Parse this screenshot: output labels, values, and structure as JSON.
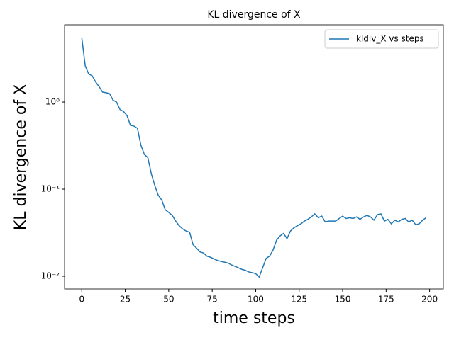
{
  "chart_data": {
    "type": "line",
    "title": "KL divergence of X",
    "xlabel": "time steps",
    "ylabel": "KL divergence of X",
    "x": [
      0,
      2,
      4,
      6,
      8,
      10,
      12,
      14,
      16,
      18,
      20,
      22,
      24,
      26,
      28,
      30,
      32,
      34,
      36,
      38,
      40,
      42,
      44,
      46,
      48,
      50,
      52,
      54,
      56,
      58,
      60,
      62,
      64,
      66,
      68,
      70,
      72,
      74,
      76,
      78,
      80,
      82,
      84,
      86,
      88,
      90,
      92,
      94,
      96,
      98,
      100,
      102,
      104,
      106,
      108,
      110,
      112,
      114,
      116,
      118,
      120,
      122,
      124,
      126,
      128,
      130,
      132,
      134,
      136,
      138,
      140,
      142,
      144,
      146,
      148,
      150,
      152,
      154,
      156,
      158,
      160,
      162,
      164,
      166,
      168,
      170,
      172,
      174,
      176,
      178,
      180,
      182,
      184,
      186,
      188,
      190,
      192,
      194,
      196,
      198
    ],
    "series": [
      {
        "name": "kldiv_X vs steps",
        "color": "#1f77b4",
        "values": [
          5.5,
          2.6,
          2.1,
          2.0,
          1.7,
          1.5,
          1.3,
          1.28,
          1.25,
          1.05,
          1.0,
          0.82,
          0.78,
          0.7,
          0.54,
          0.53,
          0.5,
          0.32,
          0.25,
          0.23,
          0.15,
          0.11,
          0.085,
          0.075,
          0.058,
          0.054,
          0.05,
          0.043,
          0.038,
          0.035,
          0.033,
          0.032,
          0.023,
          0.021,
          0.019,
          0.0185,
          0.017,
          0.0165,
          0.0158,
          0.0152,
          0.0148,
          0.0145,
          0.0142,
          0.0135,
          0.013,
          0.0125,
          0.012,
          0.0117,
          0.0112,
          0.011,
          0.0107,
          0.0098,
          0.0125,
          0.016,
          0.017,
          0.02,
          0.026,
          0.029,
          0.031,
          0.027,
          0.033,
          0.036,
          0.038,
          0.04,
          0.043,
          0.045,
          0.048,
          0.052,
          0.047,
          0.049,
          0.042,
          0.043,
          0.043,
          0.043,
          0.046,
          0.049,
          0.046,
          0.047,
          0.046,
          0.048,
          0.045,
          0.048,
          0.05,
          0.048,
          0.044,
          0.051,
          0.052,
          0.043,
          0.045,
          0.04,
          0.044,
          0.042,
          0.045,
          0.046,
          0.042,
          0.044,
          0.039,
          0.04,
          0.044,
          0.047
        ]
      }
    ],
    "xlim": [
      -9.9,
      207.9
    ],
    "xticks": [
      0,
      25,
      50,
      75,
      100,
      125,
      150,
      175,
      200
    ],
    "ylim": [
      0.00714,
      7.7
    ],
    "log_y": true,
    "yticks": [
      {
        "value": 0.01,
        "label": "10⁻²"
      },
      {
        "value": 0.1,
        "label": "10⁻¹"
      },
      {
        "value": 1,
        "label": "10⁰"
      }
    ],
    "legend": "upper right"
  }
}
